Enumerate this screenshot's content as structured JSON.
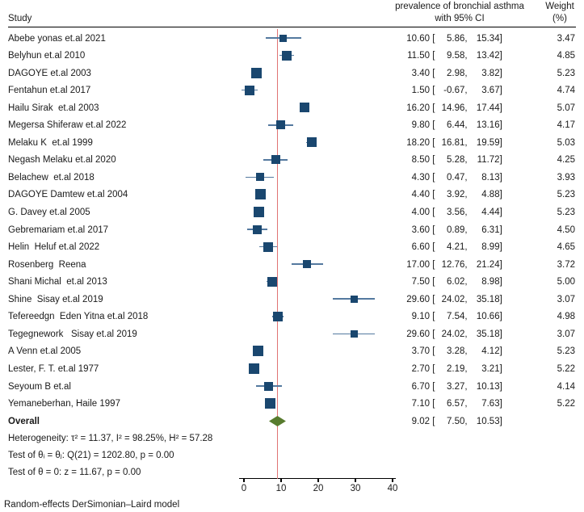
{
  "header": {
    "study_col": "Study",
    "effect_col_line1": "prevalence of bronchial asthma",
    "effect_col_line2": "with 95% CI",
    "weight_col_line1": "Weight",
    "weight_col_line2": "(%)"
  },
  "stats": {
    "heterogeneity": "Heterogeneity: τ² = 11.37, I² = 98.25%, H² = 57.28",
    "test_theta_ij": "Test of θᵢ = θⱼ: Q(21) = 1202.80, p = 0.00",
    "test_theta_zero": "Test of θ = 0: z = 11.67, p = 0.00"
  },
  "footnote": "Random-effects DerSimonian–Laird model",
  "colors": {
    "marker": "#1a476f",
    "ci_line": "#54799f",
    "reference_line": "#e07474",
    "diamond": "#587b2e",
    "axis": "#000000"
  },
  "chart_data": {
    "type": "forest",
    "title": "prevalence of bronchial asthma with 95% CI",
    "xlabel": "",
    "x_ticks": [
      0,
      10,
      20,
      30,
      40
    ],
    "xlim": [
      -1.5,
      41
    ],
    "reference_line_x": 9.02,
    "legend": "none",
    "model_note": "Random-effects DerSimonian–Laird model",
    "studies": [
      {
        "label": "Abebe yonas et.al 2021",
        "est": 10.6,
        "lo": 5.86,
        "hi": 15.34,
        "weight": 3.47
      },
      {
        "label": "Belyhun et.al 2010",
        "est": 11.5,
        "lo": 9.58,
        "hi": 13.42,
        "weight": 4.85
      },
      {
        "label": "DAGOYE et.al 2003",
        "est": 3.4,
        "lo": 2.98,
        "hi": 3.82,
        "weight": 5.23
      },
      {
        "label": "Fentahun et.al 2017",
        "est": 1.5,
        "lo": -0.67,
        "hi": 3.67,
        "weight": 4.74
      },
      {
        "label": "Hailu Sirak  et.al 2003",
        "est": 16.2,
        "lo": 14.96,
        "hi": 17.44,
        "weight": 5.07
      },
      {
        "label": "Megersa Shiferaw et.al 2022",
        "est": 9.8,
        "lo": 6.44,
        "hi": 13.16,
        "weight": 4.17
      },
      {
        "label": "Melaku K  et.al 1999",
        "est": 18.2,
        "lo": 16.81,
        "hi": 19.59,
        "weight": 5.03
      },
      {
        "label": "Negash Melaku et.al 2020",
        "est": 8.5,
        "lo": 5.28,
        "hi": 11.72,
        "weight": 4.25
      },
      {
        "label": "Belachew  et.al 2018",
        "est": 4.3,
        "lo": 0.47,
        "hi": 8.13,
        "weight": 3.93
      },
      {
        "label": "DAGOYE Damtew et.al 2004",
        "est": 4.4,
        "lo": 3.92,
        "hi": 4.88,
        "weight": 5.23
      },
      {
        "label": "G. Davey et.al 2005",
        "est": 4.0,
        "lo": 3.56,
        "hi": 4.44,
        "weight": 5.23
      },
      {
        "label": "Gebremariam et.al 2017",
        "est": 3.6,
        "lo": 0.89,
        "hi": 6.31,
        "weight": 4.5
      },
      {
        "label": "Helin  Heluf et.al 2022",
        "est": 6.6,
        "lo": 4.21,
        "hi": 8.99,
        "weight": 4.65
      },
      {
        "label": "Rosenberg  Reena",
        "est": 17.0,
        "lo": 12.76,
        "hi": 21.24,
        "weight": 3.72
      },
      {
        "label": "Shani Michal  et.al 2013",
        "est": 7.5,
        "lo": 6.02,
        "hi": 8.98,
        "weight": 5.0
      },
      {
        "label": "Shine  Sisay et.al 2019",
        "est": 29.6,
        "lo": 24.02,
        "hi": 35.18,
        "weight": 3.07
      },
      {
        "label": "Tefereedgn  Eden Yitna et.al 2018",
        "est": 9.1,
        "lo": 7.54,
        "hi": 10.66,
        "weight": 4.98
      },
      {
        "label": "Tegegnework   Sisay et.al 2019",
        "est": 29.6,
        "lo": 24.02,
        "hi": 35.18,
        "weight": 3.07
      },
      {
        "label": "A Venn et.al 2005",
        "est": 3.7,
        "lo": 3.28,
        "hi": 4.12,
        "weight": 5.23
      },
      {
        "label": "Lester, F. T. et.al 1977",
        "est": 2.7,
        "lo": 2.19,
        "hi": 3.21,
        "weight": 5.22
      },
      {
        "label": "Seyoum B et.al",
        "est": 6.7,
        "lo": 3.27,
        "hi": 10.13,
        "weight": 4.14
      },
      {
        "label": "Yemaneberhan, Haile 1997",
        "est": 7.1,
        "lo": 6.57,
        "hi": 7.63,
        "weight": 5.22
      }
    ],
    "overall": {
      "label": "Overall",
      "est": 9.02,
      "lo": 7.5,
      "hi": 10.53
    }
  }
}
